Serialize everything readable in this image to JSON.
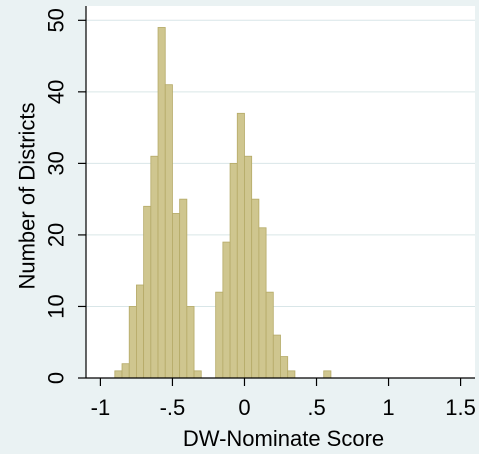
{
  "chart_data": {
    "type": "bar",
    "subtype": "histogram",
    "xlabel": "DW-Nominate Score",
    "ylabel": "Number of Districts",
    "xlim": [
      -1.1,
      1.6
    ],
    "ylim": [
      0,
      52
    ],
    "x_ticks": [
      -1,
      -0.5,
      0,
      0.5,
      1,
      1.5
    ],
    "x_tick_labels": [
      "-1",
      "-.5",
      "0",
      ".5",
      "1",
      "1.5"
    ],
    "y_ticks": [
      0,
      10,
      20,
      30,
      40,
      50
    ],
    "y_tick_labels": [
      "0",
      "10",
      "20",
      "30",
      "40",
      "50"
    ],
    "bin_width": 0.05,
    "bins": [
      {
        "x0": -0.9,
        "value": 1
      },
      {
        "x0": -0.85,
        "value": 2
      },
      {
        "x0": -0.8,
        "value": 10
      },
      {
        "x0": -0.75,
        "value": 13
      },
      {
        "x0": -0.7,
        "value": 24
      },
      {
        "x0": -0.65,
        "value": 31
      },
      {
        "x0": -0.6,
        "value": 49
      },
      {
        "x0": -0.55,
        "value": 41
      },
      {
        "x0": -0.5,
        "value": 23
      },
      {
        "x0": -0.45,
        "value": 25
      },
      {
        "x0": -0.4,
        "value": 10
      },
      {
        "x0": -0.35,
        "value": 1
      },
      {
        "x0": -0.2,
        "value": 12
      },
      {
        "x0": -0.15,
        "value": 19
      },
      {
        "x0": -0.1,
        "value": 30
      },
      {
        "x0": -0.05,
        "value": 37
      },
      {
        "x0": 0.0,
        "value": 31
      },
      {
        "x0": 0.05,
        "value": 25
      },
      {
        "x0": 0.1,
        "value": 21
      },
      {
        "x0": 0.15,
        "value": 12
      },
      {
        "x0": 0.2,
        "value": 6
      },
      {
        "x0": 0.25,
        "value": 3
      },
      {
        "x0": 0.3,
        "value": 1
      },
      {
        "x0": 0.55,
        "value": 1
      }
    ],
    "grid": "horizontal",
    "colors": {
      "bar_fill": "#cfc68f",
      "bar_stroke": "#b5aa67",
      "plot_background": "#ffffff",
      "outer_background": "#eaf2f3",
      "grid": "#d9e6e8",
      "axis": "#000000"
    }
  }
}
